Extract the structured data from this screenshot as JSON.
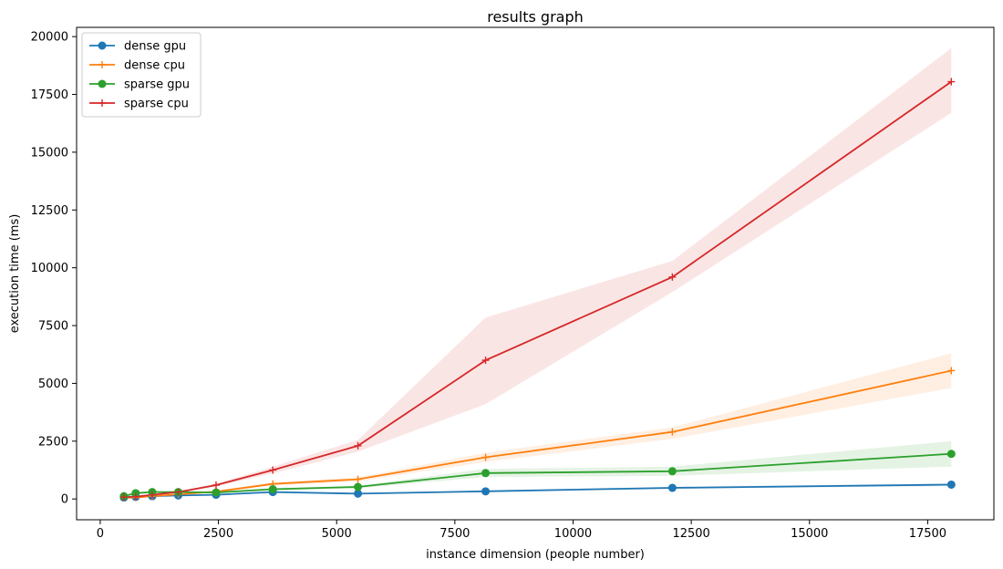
{
  "chart_data": {
    "type": "line",
    "title": "results graph",
    "xlabel": "instance dimension (people number)",
    "ylabel": "execution time (ms)",
    "xlim": [
      -500,
      18900
    ],
    "ylim": [
      -900,
      20400
    ],
    "xticks": [
      0,
      2500,
      5000,
      7500,
      10000,
      12500,
      15000,
      17500
    ],
    "yticks": [
      0,
      2500,
      5000,
      7500,
      10000,
      12500,
      15000,
      17500,
      20000
    ],
    "grid": false,
    "legend_position": "upper-left",
    "series": [
      {
        "name": "dense gpu",
        "color": "#1f77b4",
        "marker": "circle",
        "x": [
          500,
          750,
          1100,
          1650,
          2450,
          3650,
          5450,
          8150,
          12100,
          18000
        ],
        "y": [
          60,
          90,
          120,
          150,
          180,
          300,
          230,
          330,
          480,
          620
        ],
        "band_low": [
          50,
          80,
          100,
          130,
          160,
          260,
          200,
          290,
          430,
          560
        ],
        "band_high": [
          70,
          100,
          140,
          170,
          200,
          340,
          260,
          370,
          530,
          680
        ]
      },
      {
        "name": "dense cpu",
        "color": "#ff7f0e",
        "marker": "plus",
        "x": [
          500,
          750,
          1100,
          1650,
          2450,
          3650,
          5450,
          8150,
          12100,
          18000
        ],
        "y": [
          50,
          60,
          120,
          200,
          320,
          650,
          850,
          1800,
          2900,
          5550
        ],
        "band_low": [
          40,
          50,
          100,
          170,
          280,
          580,
          760,
          1600,
          2600,
          4800
        ],
        "band_high": [
          60,
          70,
          140,
          230,
          360,
          720,
          940,
          2000,
          3100,
          6300
        ]
      },
      {
        "name": "sparse gpu",
        "color": "#2ca02c",
        "marker": "circle",
        "x": [
          500,
          750,
          1100,
          1650,
          2450,
          3650,
          5450,
          8150,
          12100,
          18000
        ],
        "y": [
          120,
          250,
          300,
          300,
          280,
          420,
          520,
          1120,
          1200,
          1950
        ],
        "band_low": [
          100,
          220,
          260,
          260,
          240,
          370,
          460,
          950,
          1000,
          1400
        ],
        "band_high": [
          140,
          280,
          340,
          340,
          320,
          470,
          580,
          1300,
          1400,
          2500
        ]
      },
      {
        "name": "sparse cpu",
        "color": "#d62728",
        "marker": "plus",
        "x": [
          500,
          750,
          1100,
          1650,
          2450,
          3650,
          5450,
          8150,
          12100,
          18000
        ],
        "y": [
          80,
          100,
          180,
          300,
          600,
          1250,
          2300,
          6000,
          9600,
          18050
        ],
        "band_low": [
          70,
          90,
          160,
          260,
          540,
          1100,
          2050,
          4100,
          8950,
          16700
        ],
        "band_high": [
          90,
          110,
          200,
          340,
          660,
          1400,
          2550,
          7850,
          10300,
          19500
        ]
      }
    ]
  }
}
